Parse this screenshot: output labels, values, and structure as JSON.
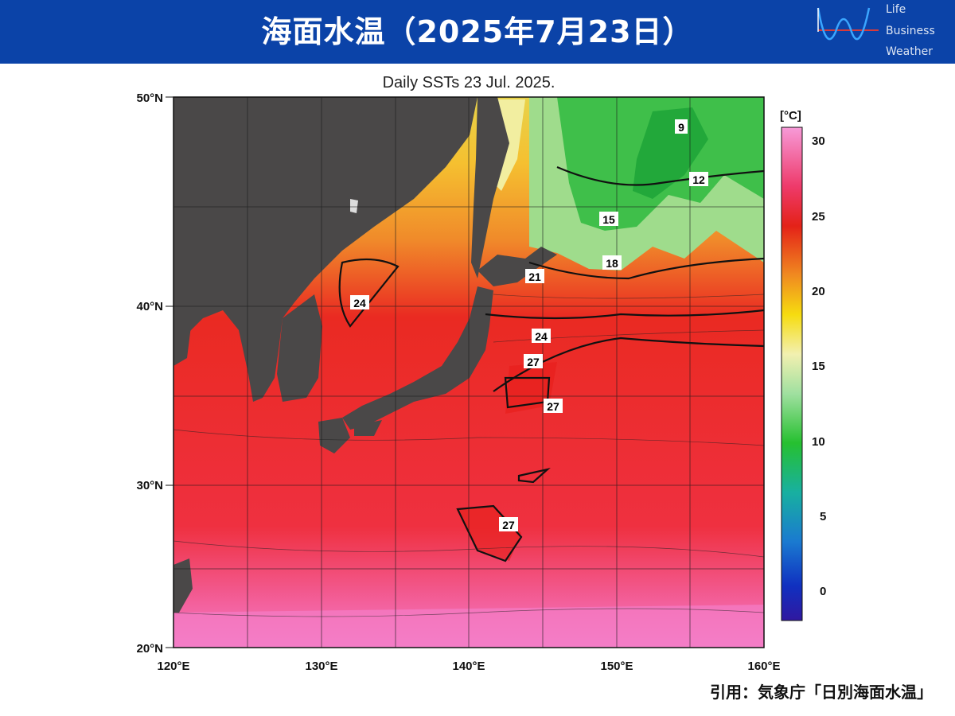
{
  "banner": {
    "title": "海面水温（2025年7月23日）",
    "logo_lines": [
      "Life",
      "Business",
      "Weather"
    ],
    "color": "#0b43a8"
  },
  "map": {
    "title": "Daily SSTs 23 Jul. 2025.",
    "lat_labels": [
      "50°N",
      "40°N",
      "30°N",
      "20°N"
    ],
    "lon_labels": [
      "120°E",
      "130°E",
      "140°E",
      "150°E",
      "160°E"
    ],
    "contour_labels": [
      "9",
      "12",
      "15",
      "18",
      "21",
      "24",
      "24",
      "27",
      "27",
      "27"
    ],
    "land_color": "#4a4848"
  },
  "colorbar": {
    "unit": "[°C]",
    "ticks": [
      "30",
      "25",
      "20",
      "15",
      "10",
      "5",
      "0"
    ],
    "range": [
      -2,
      31
    ]
  },
  "citation": "引用：気象庁「日別海面水温」"
}
